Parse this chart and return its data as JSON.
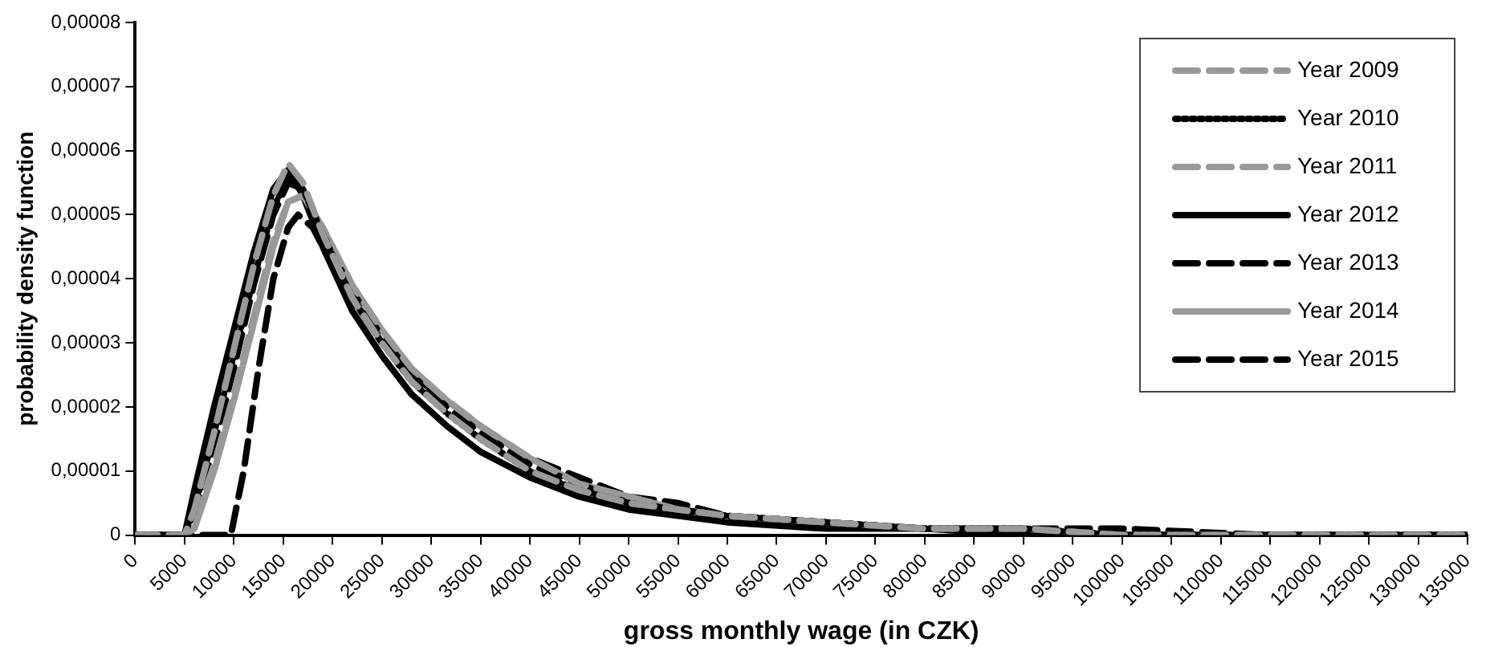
{
  "chart_data": {
    "type": "line",
    "xlabel": "gross monthly wage (in CZK)",
    "ylabel": "probability density function",
    "x": [
      0,
      5000,
      6000,
      8000,
      10000,
      12000,
      14000,
      15500,
      17000,
      19000,
      22000,
      25000,
      28000,
      31600,
      35000,
      40000,
      45000,
      50000,
      55000,
      60000,
      70000,
      80000,
      90000,
      100000,
      115000,
      135000
    ],
    "series": [
      {
        "name": "Year 2009",
        "color": "#999999",
        "line_style": "dashed",
        "values": [
          0,
          0,
          4e-06,
          1.6e-05,
          2.9e-05,
          4.2e-05,
          5.3e-05,
          5.8e-05,
          5.5e-05,
          4.7e-05,
          3.7e-05,
          3e-05,
          2.4e-05,
          1.9e-05,
          1.5e-05,
          1e-05,
          7e-06,
          5e-06,
          4e-06,
          3e-06,
          2e-06,
          1e-06,
          1e-06,
          0,
          0,
          0
        ]
      },
      {
        "name": "Year 2010",
        "color": "#000000",
        "line_style": "dotted",
        "values": [
          0,
          0,
          4e-06,
          1.6e-05,
          2.8e-05,
          4e-05,
          5.1e-05,
          5.6e-05,
          5.4e-05,
          4.7e-05,
          3.7e-05,
          3e-05,
          2.4e-05,
          1.9e-05,
          1.5e-05,
          1e-05,
          7e-06,
          5e-06,
          4e-06,
          3e-06,
          2e-06,
          1e-06,
          1e-06,
          0,
          0,
          0
        ]
      },
      {
        "name": "Year 2011",
        "color": "#999999",
        "line_style": "dashed",
        "values": [
          0,
          0,
          2e-06,
          1.1e-05,
          2.2e-05,
          3.4e-05,
          4.6e-05,
          5.2e-05,
          5.3e-05,
          4.8e-05,
          3.9e-05,
          3.2e-05,
          2.6e-05,
          2.1e-05,
          1.7e-05,
          1.2e-05,
          8e-06,
          6e-06,
          4e-06,
          3e-06,
          2e-06,
          1e-06,
          1e-06,
          0,
          0,
          0
        ]
      },
      {
        "name": "Year 2012",
        "color": "#000000",
        "line_style": "solid",
        "values": [
          0,
          0,
          7e-06,
          2e-05,
          3.2e-05,
          4.4e-05,
          5.4e-05,
          5.7e-05,
          5.3e-05,
          4.5e-05,
          3.5e-05,
          2.8e-05,
          2.2e-05,
          1.7e-05,
          1.3e-05,
          9e-06,
          6e-06,
          4e-06,
          3e-06,
          2e-06,
          1e-06,
          1e-06,
          0,
          0,
          0,
          0
        ]
      },
      {
        "name": "Year 2013",
        "color": "#000000",
        "line_style": "dashed",
        "values": [
          0,
          0,
          3e-06,
          1.4e-05,
          2.6e-05,
          3.9e-05,
          5e-05,
          5.5e-05,
          5.4e-05,
          4.7e-05,
          3.8e-05,
          3.1e-05,
          2.5e-05,
          2e-05,
          1.6e-05,
          1.1e-05,
          8e-06,
          5e-06,
          4e-06,
          3e-06,
          2e-06,
          1e-06,
          1e-06,
          0,
          0,
          0
        ]
      },
      {
        "name": "Year 2014",
        "color": "#999999",
        "line_style": "solid",
        "values": [
          0,
          0,
          1e-06,
          1e-05,
          2.1e-05,
          3.3e-05,
          4.5e-05,
          5.2e-05,
          5.3e-05,
          4.8e-05,
          3.9e-05,
          3.2e-05,
          2.6e-05,
          2.1e-05,
          1.7e-05,
          1.2e-05,
          8e-06,
          6e-06,
          4e-06,
          3e-06,
          2e-06,
          1e-06,
          1e-06,
          0,
          0,
          0
        ]
      },
      {
        "name": "Year 2015",
        "color": "#000000",
        "line_style": "dashed",
        "x": [
          0,
          5000,
          8000,
          9700,
          11000,
          12500,
          14000,
          15500,
          16500,
          18000,
          20000,
          22000,
          25000,
          28000,
          31600,
          35000,
          40000,
          45000,
          50000,
          55000,
          60000,
          70000,
          80000,
          90000,
          100000,
          115000,
          135000
        ],
        "values": [
          0,
          0,
          0,
          0,
          1e-05,
          2.6e-05,
          4e-05,
          4.8e-05,
          5e-05,
          4.8e-05,
          4.2e-05,
          3.7e-05,
          3e-05,
          2.5e-05,
          2.1e-05,
          1.7e-05,
          1.2e-05,
          9e-06,
          6e-06,
          5e-06,
          3e-06,
          2e-06,
          1e-06,
          1e-06,
          1e-06,
          0,
          0
        ]
      }
    ],
    "xlim": [
      0,
      135000
    ],
    "xticks": [
      0,
      5000,
      10000,
      15000,
      20000,
      25000,
      30000,
      35000,
      40000,
      45000,
      50000,
      55000,
      60000,
      65000,
      70000,
      75000,
      80000,
      85000,
      90000,
      95000,
      100000,
      105000,
      110000,
      115000,
      120000,
      125000,
      130000,
      135000
    ],
    "ylim": [
      0,
      8e-05
    ],
    "yticks": [
      0,
      {
        "value": 1e-05,
        "label": "0,00001"
      },
      {
        "value": 2e-05,
        "label": "0,00002"
      },
      {
        "value": 3e-05,
        "label": "0,00003"
      },
      {
        "value": 4e-05,
        "label": "0,00004"
      },
      {
        "value": 5e-05,
        "label": "0,00005"
      },
      {
        "value": 6e-05,
        "label": "0,00006"
      },
      {
        "value": 7e-05,
        "label": "0,00007"
      },
      {
        "value": 8e-05,
        "label": "0,00008"
      }
    ],
    "grid": false,
    "legend": "top right",
    "marker": "none"
  }
}
